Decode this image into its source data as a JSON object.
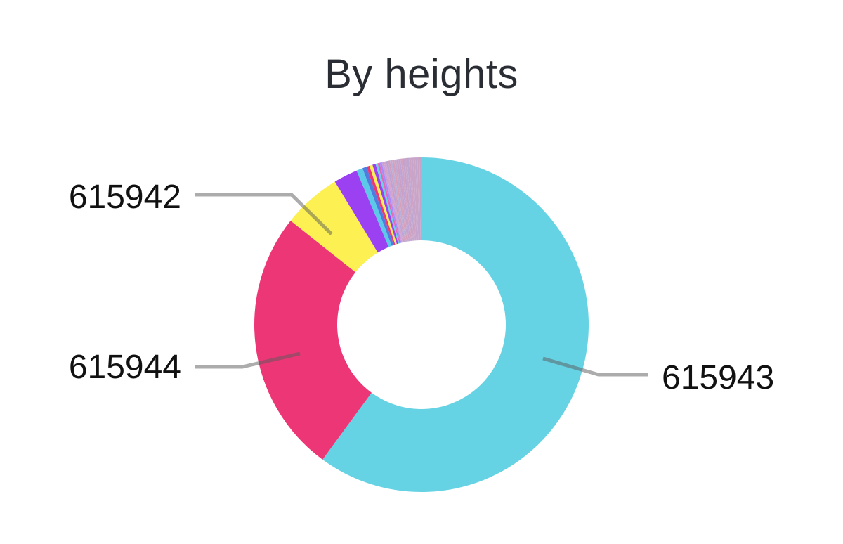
{
  "chart_data": {
    "type": "pie",
    "title": "By heights",
    "donut": true,
    "slices": [
      {
        "label": "615943",
        "value": 59.6,
        "color": "#66D3E4"
      },
      {
        "label": "615944",
        "value": 25.4,
        "color": "#EC3676"
      },
      {
        "label": "615942",
        "value": 5.6,
        "color": "#FCF052"
      },
      {
        "label": "",
        "value": 2.3,
        "color": "#9B41F2"
      },
      {
        "label": "",
        "value": 0.6,
        "color": "#5CC9E8"
      },
      {
        "label": "",
        "value": 0.4,
        "color": "#4E7CE0"
      },
      {
        "label": "",
        "value": 0.3,
        "color": "#EC3676"
      },
      {
        "label": "",
        "value": 0.3,
        "color": "#FCF052"
      },
      {
        "label": "",
        "value": 0.3,
        "color": "#9B41F2"
      },
      {
        "label": "",
        "value": 0.2,
        "color": "#66D3E4"
      },
      {
        "label": "",
        "value": 0.2,
        "color": "#E06BB8"
      },
      {
        "label": "",
        "value": 0.2,
        "color": "#A78BFA"
      },
      {
        "label": "",
        "value": 0.2,
        "color": "#C9A0DC"
      },
      {
        "label": "",
        "value": 0.2,
        "color": "#D4A5C8"
      },
      {
        "label": "",
        "value": 0.2,
        "color": "#B9A3D9"
      },
      {
        "label": "",
        "value": 0.2,
        "color": "#CFA0C0"
      },
      {
        "label": "",
        "value": 0.2,
        "color": "#B8B0D8"
      },
      {
        "label": "",
        "value": 0.2,
        "color": "#D8A0B8"
      },
      {
        "label": "",
        "value": 0.2,
        "color": "#C0A8D0"
      },
      {
        "label": "",
        "value": 0.2,
        "color": "#CC9FC4"
      },
      {
        "label": "",
        "value": 0.2,
        "color": "#BFA4D6"
      },
      {
        "label": "",
        "value": 0.2,
        "color": "#D2A3C0"
      },
      {
        "label": "",
        "value": 0.2,
        "color": "#C4A2CE"
      },
      {
        "label": "",
        "value": 0.2,
        "color": "#C8A6C9"
      },
      {
        "label": "",
        "value": 0.2,
        "color": "#BCA7D2"
      },
      {
        "label": "",
        "value": 0.2,
        "color": "#D0A2C4"
      },
      {
        "label": "",
        "value": 0.2,
        "color": "#C6A4CC"
      },
      {
        "label": "",
        "value": 0.2,
        "color": "#CAA5C6"
      },
      {
        "label": "",
        "value": 0.2,
        "color": "#C2A6D0"
      },
      {
        "label": "",
        "value": 0.2,
        "color": "#CEA3C2"
      },
      {
        "label": "",
        "value": 0.2,
        "color": "#C5A4CB"
      }
    ],
    "callouts": [
      "615942",
      "615944",
      "615943"
    ]
  }
}
